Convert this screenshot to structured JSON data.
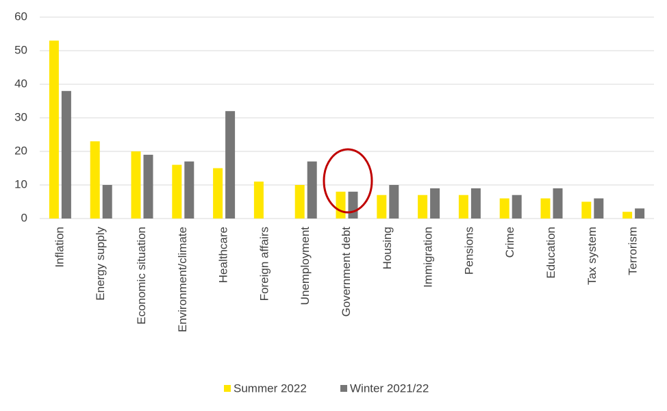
{
  "chart_data": {
    "type": "bar",
    "categories": [
      "Inflation",
      "Energy supply",
      "Economic situation",
      "Environment/climate",
      "Healthcare",
      "Foreign affairs",
      "Unemployment",
      "Government debt",
      "Housing",
      "Immigration",
      "Pensions",
      "Crime",
      "Education",
      "Tax system",
      "Terrorism"
    ],
    "series": [
      {
        "name": "Summer 2022",
        "color": "#ffe600",
        "values": [
          53,
          23,
          20,
          16,
          15,
          11,
          10,
          8,
          7,
          7,
          7,
          6,
          6,
          5,
          2
        ]
      },
      {
        "name": "Winter 2021/22",
        "color": "#767676",
        "values": [
          38,
          10,
          19,
          17,
          32,
          0,
          17,
          8,
          10,
          9,
          9,
          7,
          9,
          6,
          3
        ]
      }
    ],
    "ylim": [
      0,
      60
    ],
    "yticks": [
      0,
      10,
      20,
      30,
      40,
      50,
      60
    ],
    "grid": true,
    "legend": "bottom"
  }
}
